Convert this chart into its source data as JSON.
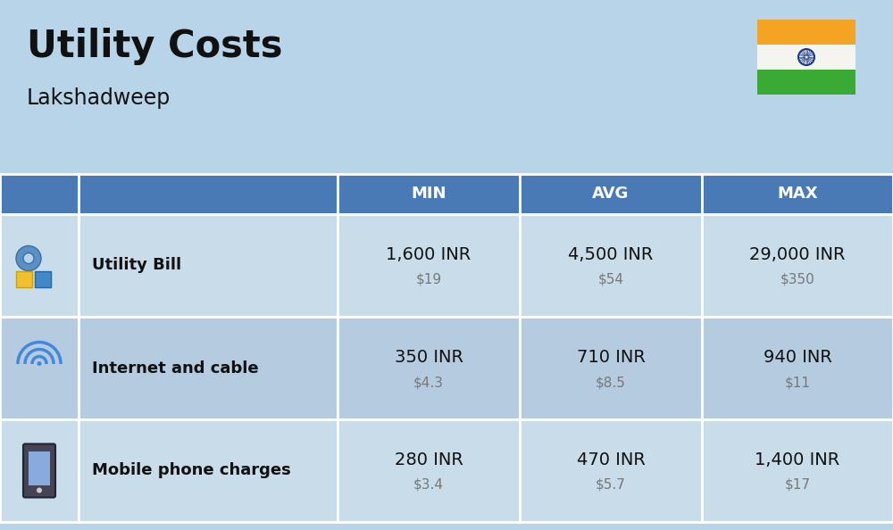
{
  "title": "Utility Costs",
  "subtitle": "Lakshadweep",
  "background_color": "#b8d4e8",
  "header_bg_color": "#4a7ab5",
  "header_text_color": "#ffffff",
  "row_bg_color_1": "#c8dcea",
  "row_bg_color_2": "#b5cce0",
  "table_line_color": "#ffffff",
  "columns": [
    "MIN",
    "AVG",
    "MAX"
  ],
  "rows": [
    {
      "label": "Utility Bill",
      "min_inr": "1,600 INR",
      "min_usd": "$19",
      "avg_inr": "4,500 INR",
      "avg_usd": "$54",
      "max_inr": "29,000 INR",
      "max_usd": "$350"
    },
    {
      "label": "Internet and cable",
      "min_inr": "350 INR",
      "min_usd": "$4.3",
      "avg_inr": "710 INR",
      "avg_usd": "$8.5",
      "max_inr": "940 INR",
      "max_usd": "$11"
    },
    {
      "label": "Mobile phone charges",
      "min_inr": "280 INR",
      "min_usd": "$3.4",
      "avg_inr": "470 INR",
      "avg_usd": "$5.7",
      "max_inr": "1,400 INR",
      "max_usd": "$17"
    }
  ],
  "title_fontsize": 30,
  "subtitle_fontsize": 17,
  "header_fontsize": 13,
  "label_fontsize": 13,
  "value_fontsize": 14,
  "usd_fontsize": 11,
  "flag_saffron": "#f4a323",
  "flag_white": "#f5f5f0",
  "flag_green": "#3aaa35",
  "flag_chakra": "#1a3a8c"
}
